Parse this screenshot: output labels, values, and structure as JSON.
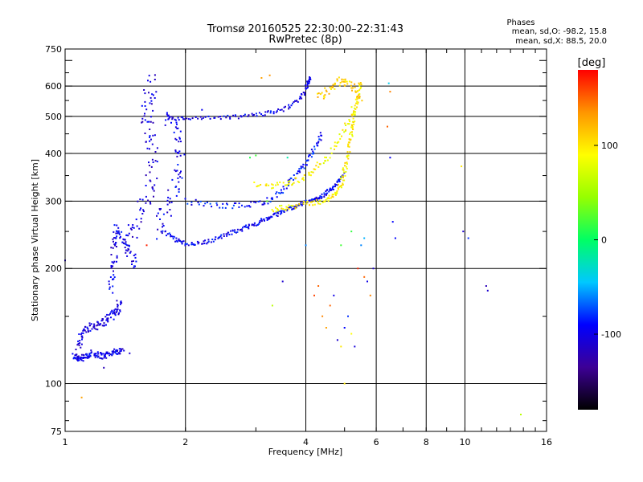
{
  "chart_data": {
    "type": "scatter",
    "title": "Tromsø 20160525 22:30:00–22:31:43",
    "subtitle": "RwPretec (8p)",
    "xlabel": "Frequency [MHz]",
    "ylabel": "Stationary phase Virtual Height [km]",
    "x_scale": "log",
    "y_scale": "log",
    "xlim": [
      1,
      16
    ],
    "ylim": [
      75,
      750
    ],
    "x_ticks": [
      1,
      2,
      4,
      6,
      8,
      10,
      16
    ],
    "x_tick_labels": [
      "1",
      "2",
      "4",
      "6",
      "8",
      "10",
      "16"
    ],
    "x_gridlines": [
      2,
      4,
      6,
      8,
      10
    ],
    "y_ticks": [
      75,
      100,
      200,
      300,
      400,
      500,
      600,
      750
    ],
    "y_tick_labels": [
      "75",
      "100",
      "200",
      "300",
      "400",
      "500",
      "600",
      "750"
    ],
    "y_gridlines": [
      100,
      200,
      300,
      400,
      500,
      600
    ],
    "grid": true,
    "phase_info": {
      "heading": "Phases",
      "line_o": "mean, sd,O: -98.2, 15.8",
      "line_x": "mean, sd,X:  88.5, 20.0"
    },
    "colorbar": {
      "label": "[deg]",
      "range": [
        -180,
        180
      ],
      "ticks": [
        100,
        0,
        -100
      ],
      "tick_labels": [
        "100",
        "0",
        "-100"
      ],
      "colors": [
        "#000000",
        "#3d0096",
        "#0000ff",
        "#00c8ff",
        "#00ff64",
        "#96ff00",
        "#ffff00",
        "#ff9600",
        "#ff0000"
      ]
    },
    "traces": [
      {
        "name": "o-low",
        "pts": [
          [
            1.05,
            118
          ],
          [
            1.07,
            117
          ],
          [
            1.1,
            116
          ],
          [
            1.13,
            118
          ],
          [
            1.16,
            120
          ],
          [
            1.2,
            119
          ],
          [
            1.25,
            118
          ],
          [
            1.3,
            120
          ],
          [
            1.35,
            122
          ],
          [
            1.4,
            121
          ]
        ],
        "phase": -100,
        "spread": 0.025
      },
      {
        "name": "o-low-rise",
        "pts": [
          [
            1.08,
            125
          ],
          [
            1.1,
            135
          ],
          [
            1.15,
            140
          ],
          [
            1.2,
            142
          ],
          [
            1.25,
            145
          ],
          [
            1.3,
            150
          ],
          [
            1.35,
            155
          ],
          [
            1.37,
            165
          ]
        ],
        "phase": -105,
        "spread": 0.03
      },
      {
        "name": "o-ramp",
        "pts": [
          [
            1.3,
            175
          ],
          [
            1.32,
            200
          ],
          [
            1.33,
            230
          ],
          [
            1.35,
            255
          ],
          [
            1.4,
            240
          ],
          [
            1.45,
            220
          ],
          [
            1.5,
            200
          ]
        ],
        "phase": -100,
        "spread": 0.04
      },
      {
        "name": "o-spread",
        "pts": [
          [
            1.4,
            230
          ],
          [
            1.5,
            260
          ],
          [
            1.6,
            300
          ],
          [
            1.65,
            350
          ],
          [
            1.65,
            420
          ],
          [
            1.6,
            480
          ],
          [
            1.62,
            560
          ],
          [
            1.65,
            630
          ]
        ],
        "phase": -105,
        "spread": 0.07
      },
      {
        "name": "o-spread2",
        "pts": [
          [
            1.7,
            250
          ],
          [
            1.8,
            290
          ],
          [
            1.9,
            330
          ],
          [
            1.95,
            380
          ],
          [
            1.9,
            450
          ],
          [
            1.8,
            500
          ]
        ],
        "phase": -100,
        "spread": 0.06
      },
      {
        "name": "o-f1",
        "pts": [
          [
            1.75,
            250
          ],
          [
            1.9,
            238
          ],
          [
            2.0,
            232
          ],
          [
            2.2,
            233
          ],
          [
            2.4,
            240
          ],
          [
            2.6,
            248
          ],
          [
            2.8,
            255
          ],
          [
            3.0,
            262
          ],
          [
            3.2,
            270
          ],
          [
            3.4,
            278
          ],
          [
            3.6,
            286
          ],
          [
            3.8,
            292
          ],
          [
            4.0,
            298
          ],
          [
            4.2,
            303
          ],
          [
            4.4,
            310
          ],
          [
            4.6,
            320
          ],
          [
            4.8,
            335
          ],
          [
            5.0,
            355
          ]
        ],
        "phase": -95,
        "spread": 0.015
      },
      {
        "name": "o-f2",
        "pts": [
          [
            2.0,
            300
          ],
          [
            2.4,
            292
          ],
          [
            2.8,
            292
          ],
          [
            3.2,
            300
          ],
          [
            3.5,
            320
          ],
          [
            3.8,
            350
          ],
          [
            4.0,
            380
          ],
          [
            4.2,
            410
          ],
          [
            4.4,
            450
          ]
        ],
        "phase": -90,
        "spread": 0.02
      },
      {
        "name": "o-echo",
        "pts": [
          [
            1.8,
            495
          ],
          [
            2.0,
            492
          ],
          [
            2.4,
            495
          ],
          [
            2.8,
            500
          ],
          [
            3.2,
            510
          ],
          [
            3.6,
            525
          ],
          [
            3.9,
            560
          ],
          [
            4.05,
            610
          ],
          [
            4.1,
            630
          ]
        ],
        "phase": -100,
        "spread": 0.015
      },
      {
        "name": "x-main",
        "pts": [
          [
            3.3,
            285
          ],
          [
            3.6,
            290
          ],
          [
            4.0,
            295
          ],
          [
            4.4,
            300
          ],
          [
            4.7,
            310
          ],
          [
            4.9,
            330
          ],
          [
            5.0,
            360
          ],
          [
            5.1,
            400
          ],
          [
            5.2,
            450
          ],
          [
            5.3,
            500
          ],
          [
            5.4,
            560
          ],
          [
            5.5,
            620
          ]
        ],
        "phase": 95,
        "spread": 0.02
      },
      {
        "name": "x-upper",
        "pts": [
          [
            3.0,
            330
          ],
          [
            3.4,
            330
          ],
          [
            3.8,
            340
          ],
          [
            4.2,
            360
          ],
          [
            4.6,
            400
          ],
          [
            5.0,
            460
          ],
          [
            5.3,
            530
          ]
        ],
        "phase": 90,
        "spread": 0.025
      },
      {
        "name": "x-echo",
        "pts": [
          [
            4.3,
            560
          ],
          [
            4.6,
            590
          ],
          [
            4.9,
            620
          ],
          [
            5.2,
            600
          ],
          [
            5.5,
            560
          ]
        ],
        "phase": 110,
        "spread": 0.03
      }
    ],
    "scatter": [
      [
        1.25,
        110,
        -120
      ],
      [
        1.45,
        120,
        -110
      ],
      [
        1.55,
        270,
        -100
      ],
      [
        2.2,
        520,
        -95
      ],
      [
        2.9,
        390,
        10
      ],
      [
        3.0,
        395,
        20
      ],
      [
        3.2,
        300,
        25
      ],
      [
        3.3,
        160,
        60
      ],
      [
        3.5,
        185,
        -110
      ],
      [
        3.6,
        390,
        -20
      ],
      [
        3.1,
        630,
        130
      ],
      [
        3.25,
        640,
        135
      ],
      [
        4.0,
        230,
        -60
      ],
      [
        4.2,
        170,
        160
      ],
      [
        4.3,
        180,
        150
      ],
      [
        4.4,
        150,
        140
      ],
      [
        4.5,
        140,
        130
      ],
      [
        4.6,
        160,
        150
      ],
      [
        4.7,
        170,
        -100
      ],
      [
        4.8,
        130,
        -110
      ],
      [
        4.9,
        125,
        100
      ],
      [
        5.0,
        140,
        -90
      ],
      [
        5.1,
        150,
        -80
      ],
      [
        5.2,
        135,
        90
      ],
      [
        5.3,
        125,
        -105
      ],
      [
        4.9,
        230,
        20
      ],
      [
        5.2,
        250,
        15
      ],
      [
        5.4,
        200,
        170
      ],
      [
        5.5,
        230,
        -60
      ],
      [
        5.6,
        240,
        -50
      ],
      [
        5.6,
        190,
        150
      ],
      [
        5.7,
        185,
        -100
      ],
      [
        5.8,
        170,
        140
      ],
      [
        5.9,
        200,
        -110
      ],
      [
        6.4,
        470,
        150
      ],
      [
        6.5,
        580,
        140
      ],
      [
        6.45,
        610,
        -40
      ],
      [
        6.5,
        390,
        -95
      ],
      [
        6.6,
        265,
        -90
      ],
      [
        6.7,
        240,
        -90
      ],
      [
        9.8,
        370,
        100
      ],
      [
        9.9,
        250,
        -110
      ],
      [
        10.2,
        240,
        -80
      ],
      [
        11.3,
        180,
        -120
      ],
      [
        11.4,
        175,
        -110
      ],
      [
        13.8,
        83,
        60
      ],
      [
        1.1,
        92,
        130
      ],
      [
        1.0,
        210,
        -110
      ],
      [
        1.6,
        230,
        170
      ],
      [
        5.0,
        100,
        100
      ]
    ]
  }
}
